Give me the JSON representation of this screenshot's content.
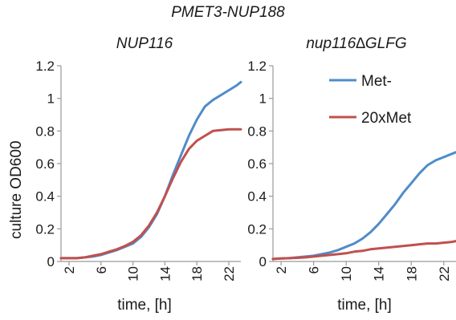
{
  "figure": {
    "supertitle": "PMET3-NUP188",
    "ylabel": "culture OD600"
  },
  "colors": {
    "met_minus": "#4f8cc9",
    "met_20x": "#c0504d",
    "axis": "#999999"
  },
  "chart_data": [
    {
      "type": "line",
      "title": "NUP116",
      "xlabel": "time, [h]",
      "ylabel": "culture OD600",
      "xticks": [
        "2",
        "6",
        "10",
        "14",
        "18",
        "22"
      ],
      "yticks": [
        "0",
        "0.2",
        "0.4",
        "0.6",
        "0.8",
        "1",
        "1.2"
      ],
      "xlim": [
        1,
        23.5
      ],
      "ylim": [
        0,
        1.2
      ],
      "grid": false,
      "series": [
        {
          "name": "Met-",
          "color": "#4f8cc9",
          "x": [
            1,
            2,
            3,
            4,
            5,
            6,
            7,
            8,
            9,
            10,
            11,
            12,
            13,
            14,
            15,
            16,
            17,
            18,
            19,
            20,
            21,
            22,
            23,
            23.5
          ],
          "y": [
            0.02,
            0.02,
            0.02,
            0.025,
            0.03,
            0.04,
            0.055,
            0.07,
            0.09,
            0.11,
            0.15,
            0.21,
            0.29,
            0.4,
            0.53,
            0.65,
            0.77,
            0.87,
            0.95,
            0.99,
            1.02,
            1.05,
            1.08,
            1.1
          ]
        },
        {
          "name": "20xMet",
          "color": "#c0504d",
          "x": [
            1,
            2,
            3,
            4,
            5,
            6,
            7,
            8,
            9,
            10,
            11,
            12,
            13,
            14,
            15,
            16,
            17,
            18,
            19,
            20,
            21,
            22,
            23,
            23.5
          ],
          "y": [
            0.02,
            0.02,
            0.02,
            0.025,
            0.035,
            0.045,
            0.06,
            0.075,
            0.095,
            0.12,
            0.16,
            0.22,
            0.3,
            0.4,
            0.51,
            0.61,
            0.69,
            0.74,
            0.77,
            0.8,
            0.805,
            0.81,
            0.81,
            0.81
          ]
        }
      ]
    },
    {
      "type": "line",
      "title": "nup116∆GLFG",
      "xlabel": "time, [h]",
      "ylabel": "",
      "xticks": [
        "2",
        "6",
        "10",
        "14",
        "18",
        "22"
      ],
      "yticks": [
        "0",
        "0.2",
        "0.4",
        "0.6",
        "0.8",
        "1",
        "1.2"
      ],
      "xlim": [
        1,
        23.5
      ],
      "ylim": [
        0,
        1.2
      ],
      "grid": false,
      "legend": "top-right",
      "series": [
        {
          "name": "Met-",
          "color": "#4f8cc9",
          "x": [
            1,
            2,
            3,
            4,
            5,
            6,
            7,
            8,
            9,
            10,
            11,
            12,
            13,
            14,
            15,
            16,
            17,
            18,
            19,
            20,
            21,
            22,
            23,
            23.5
          ],
          "y": [
            0.015,
            0.018,
            0.02,
            0.025,
            0.03,
            0.035,
            0.045,
            0.055,
            0.07,
            0.09,
            0.11,
            0.14,
            0.18,
            0.23,
            0.29,
            0.35,
            0.42,
            0.48,
            0.54,
            0.59,
            0.62,
            0.64,
            0.66,
            0.67
          ]
        },
        {
          "name": "20xMet",
          "color": "#c0504d",
          "x": [
            1,
            2,
            3,
            4,
            5,
            6,
            7,
            8,
            9,
            10,
            11,
            12,
            13,
            14,
            15,
            16,
            17,
            18,
            19,
            20,
            21,
            22,
            23,
            23.5
          ],
          "y": [
            0.015,
            0.018,
            0.02,
            0.022,
            0.025,
            0.03,
            0.035,
            0.04,
            0.045,
            0.05,
            0.06,
            0.065,
            0.075,
            0.08,
            0.085,
            0.09,
            0.095,
            0.1,
            0.105,
            0.11,
            0.11,
            0.115,
            0.12,
            0.125
          ]
        }
      ]
    }
  ]
}
